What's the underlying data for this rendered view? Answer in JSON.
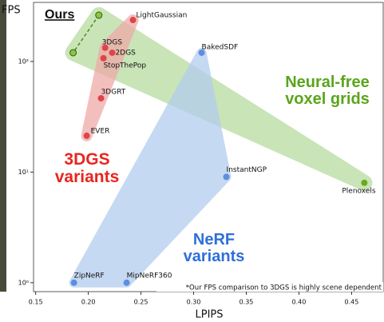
{
  "chart_data": {
    "type": "scatter",
    "x_label": "LPIPS",
    "y_label": "FPS",
    "note": "*Our FPS comparison to 3DGS is highly scene dependent",
    "xlim": [
      0.148,
      0.48
    ],
    "ylim": [
      0.83,
      342
    ],
    "log_y": true,
    "xticks": [
      0.15,
      {
        "value": 0.2,
        "label": "0.20"
      },
      0.25,
      {
        "value": 0.3,
        "label": "0.30"
      },
      0.35,
      {
        "value": 0.4,
        "label": "0.40"
      },
      0.45
    ],
    "yticks": [
      {
        "value": 1,
        "label": "10⁰"
      },
      {
        "value": 10,
        "label": "10¹"
      },
      {
        "value": 100,
        "label": "10²"
      }
    ],
    "series": [
      {
        "name": "Ours",
        "color": "#8cc63f",
        "x": [
          0.21,
          0.1856
        ],
        "values": [
          262,
          120
        ]
      },
      {
        "name": "3DGS variants",
        "color": "#e0444a",
        "x": [
          0.2424,
          0.216,
          0.2227,
          0.2144,
          0.2121,
          0.1985
        ],
        "values": [
          237,
          133,
          120,
          107,
          46.5,
          21.3
        ],
        "point_labels": [
          "LightGaussian",
          "3DGS",
          "2DGS",
          "StopThePop",
          "3DGRT",
          "EVER"
        ]
      },
      {
        "name": "NeRF variants",
        "color": "#5b8fe0",
        "x": [
          0.3076,
          0.3311,
          0.1864,
          0.2364
        ],
        "values": [
          120,
          9.05,
          1.0,
          1.0
        ],
        "point_labels": [
          "BakedSDF",
          "InstantNGP",
          "ZipNeRF",
          "MipNeRF360"
        ]
      },
      {
        "name": "Neural-free voxel grids",
        "color": "#6aaa1c",
        "x": [
          0.4621
        ],
        "values": [
          8.0
        ],
        "point_labels": [
          "Plenoxels"
        ]
      }
    ]
  }
}
